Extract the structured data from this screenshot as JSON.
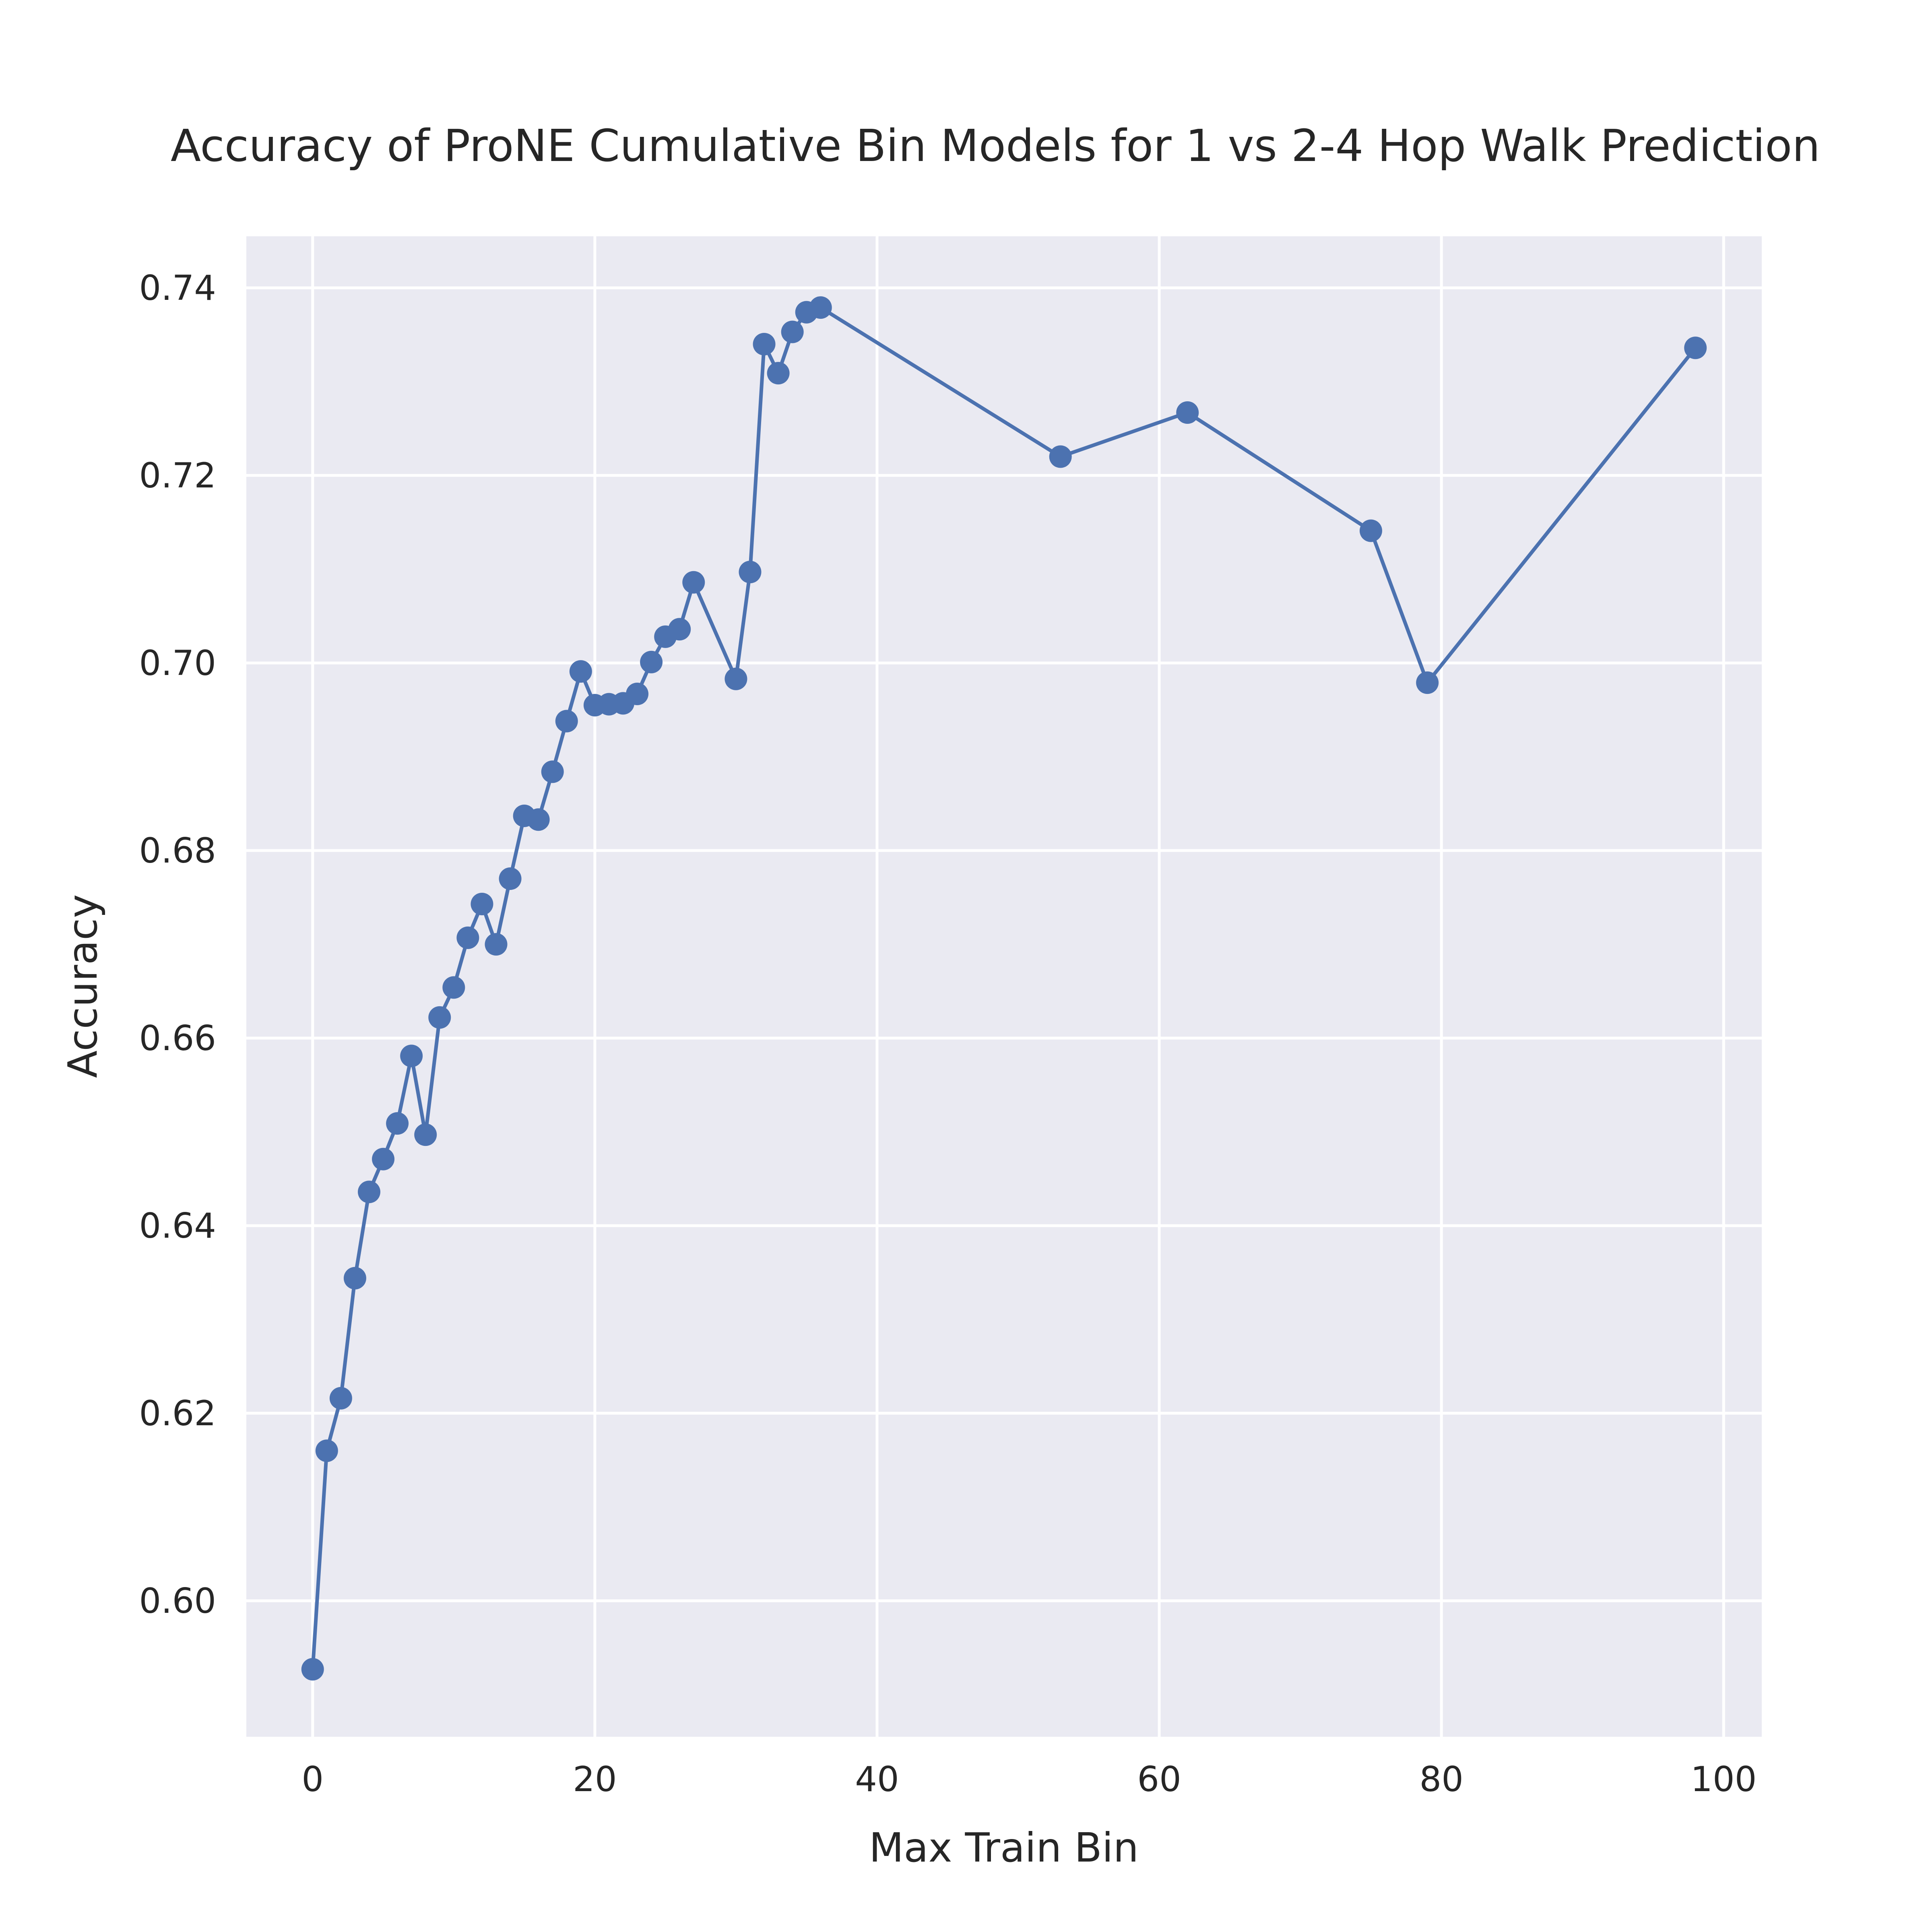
{
  "chart_data": {
    "type": "line",
    "title": "Accuracy of ProNE Cumulative Bin Models for 1 vs 2-4 Hop Walk Prediction",
    "xlabel": "Max Train Bin",
    "ylabel": "Accuracy",
    "xlim": [
      -4.7,
      102.7
    ],
    "ylim": [
      0.5855,
      0.7455
    ],
    "xticks": [
      0,
      20,
      40,
      60,
      80,
      100
    ],
    "xtick_labels": [
      "0",
      "20",
      "40",
      "60",
      "80",
      "100"
    ],
    "yticks": [
      0.6,
      0.62,
      0.64,
      0.66,
      0.68,
      0.7,
      0.72,
      0.74
    ],
    "ytick_labels": [
      "0.60",
      "0.62",
      "0.64",
      "0.66",
      "0.68",
      "0.70",
      "0.72",
      "0.74"
    ],
    "grid": true,
    "marker": "circle",
    "color": "#4c72b0",
    "background": "#eaeaf2",
    "series": [
      {
        "x": [
          0,
          1,
          2,
          3,
          4,
          5,
          6,
          7,
          8,
          9,
          10,
          11,
          12,
          13,
          14,
          15,
          16,
          17,
          18,
          19,
          20,
          21,
          22,
          23,
          24,
          25,
          26,
          27,
          30,
          31,
          32,
          33,
          34,
          35,
          36,
          53,
          62,
          75,
          79,
          98
        ],
        "y": [
          0.5927,
          0.616,
          0.6216,
          0.6344,
          0.6436,
          0.6471,
          0.6509,
          0.6581,
          0.6497,
          0.6622,
          0.6654,
          0.6707,
          0.6743,
          0.67,
          0.677,
          0.6837,
          0.6833,
          0.6884,
          0.6938,
          0.6991,
          0.6955,
          0.6956,
          0.6957,
          0.6967,
          0.7001,
          0.7028,
          0.7036,
          0.7086,
          0.6983,
          0.7097,
          0.734,
          0.7309,
          0.7353,
          0.7374,
          0.7379,
          0.722,
          0.7267,
          0.7141,
          0.6979,
          0.7336
        ]
      }
    ]
  }
}
